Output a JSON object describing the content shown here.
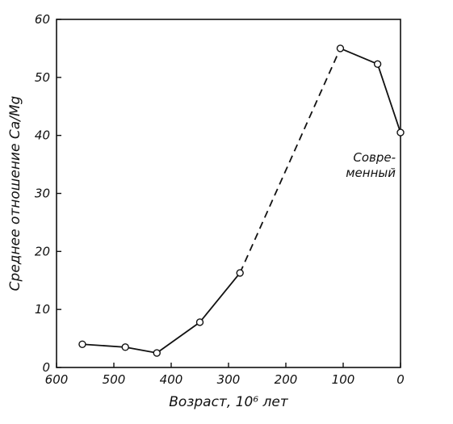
{
  "chart_data": {
    "type": "line",
    "xlabel": "Возраст, 10⁶ лет",
    "ylabel": "Среднее отношение Ca/Mg",
    "xlim": [
      600,
      0
    ],
    "ylim": [
      0,
      60
    ],
    "x_ticks": [
      600,
      500,
      400,
      300,
      200,
      100,
      0
    ],
    "y_ticks": [
      0,
      10,
      20,
      30,
      40,
      50,
      60
    ],
    "x_tick_labels": [
      "600",
      "500",
      "400",
      "300",
      "200",
      "100",
      "0"
    ],
    "y_tick_labels": [
      "0",
      "10",
      "20",
      "30",
      "40",
      "50",
      "60"
    ],
    "grid": false,
    "series": [
      {
        "x": [
          555,
          480,
          425,
          350,
          280,
          105,
          40,
          0
        ],
        "y": [
          4.0,
          3.5,
          2.5,
          7.8,
          16.3,
          55.0,
          52.3,
          40.5
        ],
        "segment_styles": [
          "solid",
          "solid",
          "solid",
          "solid",
          "dashed",
          "solid",
          "solid"
        ]
      }
    ],
    "annotation": {
      "lines": [
        "Совре-",
        "менный"
      ],
      "x": 0,
      "y": 40.5
    }
  }
}
